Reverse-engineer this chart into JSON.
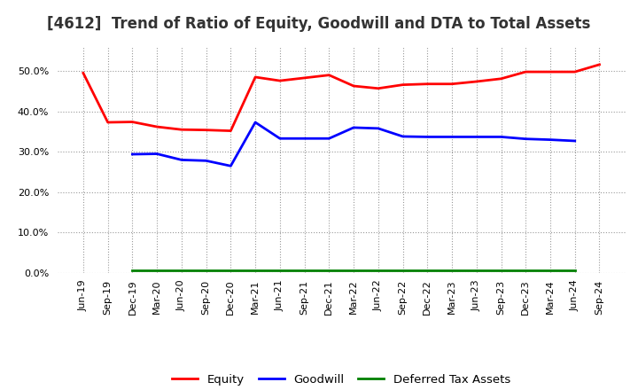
{
  "title": "[4612]  Trend of Ratio of Equity, Goodwill and DTA to Total Assets",
  "x_labels": [
    "Jun-19",
    "Sep-19",
    "Dec-19",
    "Mar-20",
    "Jun-20",
    "Sep-20",
    "Dec-20",
    "Mar-21",
    "Jun-21",
    "Sep-21",
    "Dec-21",
    "Mar-22",
    "Jun-22",
    "Sep-22",
    "Dec-22",
    "Mar-23",
    "Jun-23",
    "Sep-23",
    "Dec-23",
    "Mar-24",
    "Jun-24",
    "Sep-24"
  ],
  "equity": [
    0.495,
    0.373,
    0.374,
    0.362,
    0.355,
    0.354,
    0.352,
    0.485,
    0.476,
    0.483,
    0.49,
    0.463,
    0.457,
    0.466,
    0.468,
    0.468,
    0.474,
    0.481,
    0.498,
    0.498,
    0.498,
    0.516
  ],
  "goodwill": [
    null,
    null,
    0.294,
    0.295,
    0.28,
    0.278,
    0.265,
    0.373,
    0.333,
    0.333,
    0.333,
    0.36,
    0.358,
    0.338,
    0.337,
    0.337,
    0.337,
    0.337,
    0.332,
    0.33,
    0.327,
    null
  ],
  "dta": [
    null,
    null,
    0.006,
    0.006,
    0.006,
    0.006,
    0.006,
    0.006,
    0.006,
    0.006,
    0.006,
    0.006,
    0.006,
    0.006,
    0.006,
    0.006,
    0.006,
    0.006,
    0.006,
    0.006,
    0.006,
    null
  ],
  "equity_color": "#FF0000",
  "goodwill_color": "#0000FF",
  "dta_color": "#008000",
  "ylim": [
    0.0,
    0.56
  ],
  "yticks": [
    0.0,
    0.1,
    0.2,
    0.3,
    0.4,
    0.5
  ],
  "background_color": "#FFFFFF",
  "plot_bg_color": "#FFFFFF",
  "grid_color": "#999999",
  "title_fontsize": 12,
  "title_color": "#333333",
  "legend_fontsize": 9.5,
  "tick_fontsize": 8,
  "linewidth": 2.0
}
